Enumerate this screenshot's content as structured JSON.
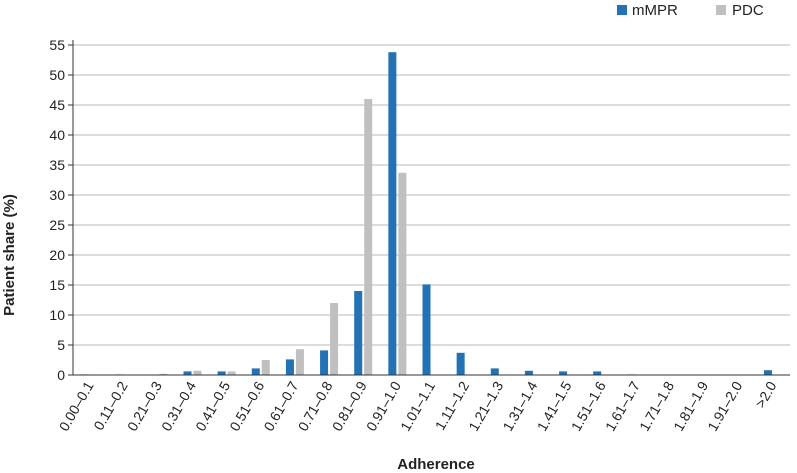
{
  "chart_data": {
    "type": "bar",
    "title": "",
    "xlabel": "Adherence",
    "ylabel": "Patient share (%)",
    "ylim": [
      0,
      55
    ],
    "yticks": [
      0,
      5,
      10,
      15,
      20,
      25,
      30,
      35,
      40,
      45,
      50,
      55
    ],
    "grid": "horizontal",
    "legend_position": "top-right",
    "categories": [
      "0.00–0.1",
      "0.11–0.2",
      "0.21–0.3",
      "0.31–0.4",
      "0.41–0.5",
      "0.51–0.6",
      "0.61–0.7",
      "0.71–0.8",
      "0.81–0.9",
      "0.91–1.0",
      "1.01–1.1",
      "1.11–1.2",
      "1.21–1.3",
      "1.31–1.4",
      "1.41–1.5",
      "1.51–1.6",
      "1.61–1.7",
      "1.71–1.8",
      "1.81–1.9",
      "1.91–2.0",
      ">2.0"
    ],
    "series": [
      {
        "name": "mMPR",
        "color": "#2272b4",
        "values": [
          0.1,
          0.1,
          0,
          0.6,
          0.6,
          1.1,
          2.6,
          4.1,
          14.0,
          53.8,
          15.1,
          3.7,
          1.1,
          0.7,
          0.6,
          0.6,
          0.1,
          0,
          0,
          0,
          0.8
        ]
      },
      {
        "name": "PDC",
        "color": "#c0c0c0",
        "values": [
          0,
          0,
          0.2,
          0.7,
          0.6,
          2.5,
          4.3,
          12.0,
          46.0,
          33.7,
          0,
          0,
          0,
          0,
          0,
          0,
          0,
          0,
          0,
          0,
          0
        ]
      }
    ]
  }
}
